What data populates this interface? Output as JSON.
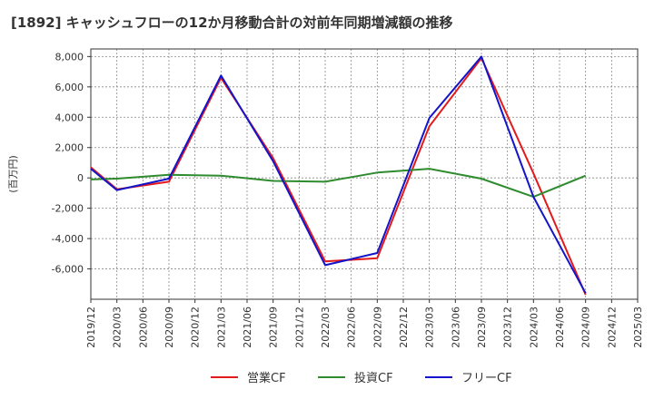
{
  "chart_data": {
    "type": "line",
    "title": "[1892]  キャッシュフローの12か月移動合計の対前年同期増減額の推移",
    "ylabel": "(百万円)",
    "xlabel": "",
    "ylim": [
      -8000,
      8500
    ],
    "yticks": [
      8000,
      6000,
      4000,
      2000,
      0,
      -2000,
      -4000,
      -6000
    ],
    "ytick_labels": [
      "8,000",
      "6,000",
      "4,000",
      "2,000",
      "0",
      "-2,000",
      "-4,000",
      "-6,000"
    ],
    "categories": [
      "2019/12",
      "2020/03",
      "2020/06",
      "2020/09",
      "2020/12",
      "2021/03",
      "2021/06",
      "2021/09",
      "2021/12",
      "2022/03",
      "2022/06",
      "2022/09",
      "2022/12",
      "2023/03",
      "2023/06",
      "2023/09",
      "2023/12",
      "2024/03",
      "2024/06",
      "2024/09",
      "2024/12",
      "2025/03"
    ],
    "grid": true,
    "series": [
      {
        "name": "営業CF",
        "color": "#e31a1c",
        "values": [
          700,
          -750,
          null,
          -250,
          null,
          6600,
          null,
          1300,
          null,
          -5500,
          null,
          -5300,
          null,
          3400,
          null,
          7900,
          null,
          300,
          null,
          -7700,
          null,
          null
        ]
      },
      {
        "name": "投資CF",
        "color": "#2e8b2e",
        "values": [
          -100,
          -50,
          null,
          200,
          null,
          150,
          null,
          -200,
          null,
          -250,
          null,
          350,
          null,
          600,
          null,
          -50,
          null,
          -1250,
          null,
          150,
          null,
          null
        ]
      },
      {
        "name": "フリーCF",
        "color": "#1414c8",
        "values": [
          600,
          -800,
          null,
          -50,
          null,
          6750,
          null,
          1100,
          null,
          -5750,
          null,
          -4950,
          null,
          3950,
          null,
          8000,
          null,
          -1250,
          null,
          -7600,
          null,
          null
        ]
      }
    ]
  }
}
